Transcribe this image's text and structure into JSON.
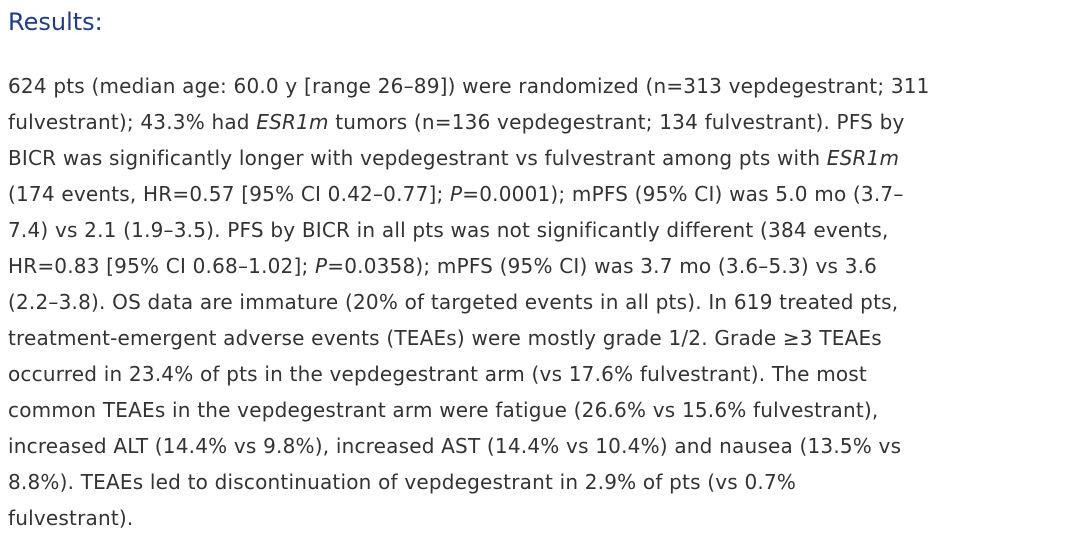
{
  "results": {
    "heading": "Results:",
    "lines": [
      [
        "624 pts (median age: 60.0 y [range 26–89]) were randomized (n=313 vepdegestrant; 311"
      ],
      [
        "fulvestrant); 43.3% had ",
        "ESR1m",
        " tumors (n=136 vepdegestrant; 134 fulvestrant). PFS by"
      ],
      [
        "BICR was significantly longer with vepdegestrant vs fulvestrant among pts with ",
        "ESR1m"
      ],
      [
        "(174 events, HR=0.57 [95% CI 0.42–0.77]; ",
        "P",
        "=0.0001); mPFS (95% CI) was 5.0 mo (3.7–"
      ],
      [
        "7.4) vs 2.1 (1.9–3.5). PFS by BICR in all pts was not significantly different (384 events,"
      ],
      [
        "HR=0.83 [95% CI 0.68–1.02]; ",
        "P",
        "=0.0358); mPFS (95% CI) was 3.7 mo (3.6–5.3) vs 3.6"
      ],
      [
        "(2.2–3.8). OS data are immature (20% of targeted events in all pts). In 619 treated pts,"
      ],
      [
        "treatment-emergent adverse events (TEAEs) were mostly grade 1/2. Grade ≥3 TEAEs"
      ],
      [
        "occurred in 23.4% of pts in the vepdegestrant arm (vs 17.6% fulvestrant). The most"
      ],
      [
        "common TEAEs in the vepdegestrant arm were fatigue (26.6% vs 15.6% fulvestrant),"
      ],
      [
        "increased ALT (14.4% vs 9.8%), increased AST (14.4% vs 10.4%) and nausea (13.5% vs"
      ],
      [
        "8.8%). TEAEs led to discontinuation of vepdegestrant in 2.9% of pts (vs 0.7%"
      ],
      [
        "fulvestrant)."
      ]
    ]
  }
}
